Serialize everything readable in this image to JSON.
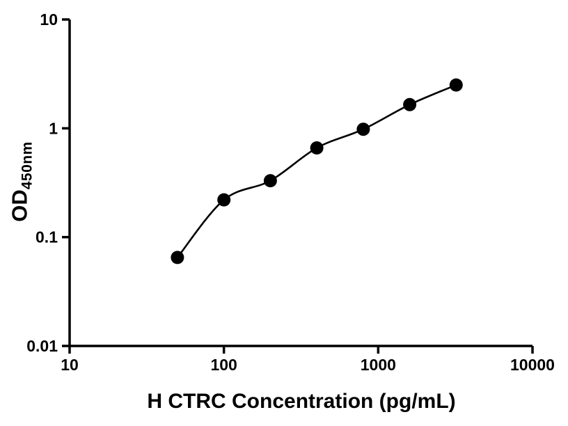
{
  "chart_data": {
    "type": "scatter",
    "title": "",
    "xlabel": "H CTRC Concentration (pg/mL)",
    "ylabel_main": "OD",
    "ylabel_sub": "450nm",
    "x_scale": "log",
    "y_scale": "log",
    "xlim": [
      10,
      10000
    ],
    "ylim": [
      0.01,
      10
    ],
    "x": [
      50,
      100,
      200,
      400,
      800,
      1600,
      3200
    ],
    "y": [
      0.065,
      0.22,
      0.33,
      0.66,
      0.98,
      1.65,
      2.5
    ],
    "x_ticks": [
      10,
      100,
      1000,
      10000
    ],
    "x_tick_labels": [
      "10",
      "100",
      "1000",
      "10000"
    ],
    "y_ticks": [
      0.01,
      0.1,
      1,
      10
    ],
    "y_tick_labels": [
      "0.01",
      "0.1",
      "1",
      "10"
    ],
    "grid": false,
    "legend": "none",
    "curve": "smooth fit line through data points",
    "marker": "filled-circle",
    "marker_color": "#000000",
    "line_color": "#000000",
    "axis_color": "#000000",
    "background_color": "#ffffff"
  }
}
